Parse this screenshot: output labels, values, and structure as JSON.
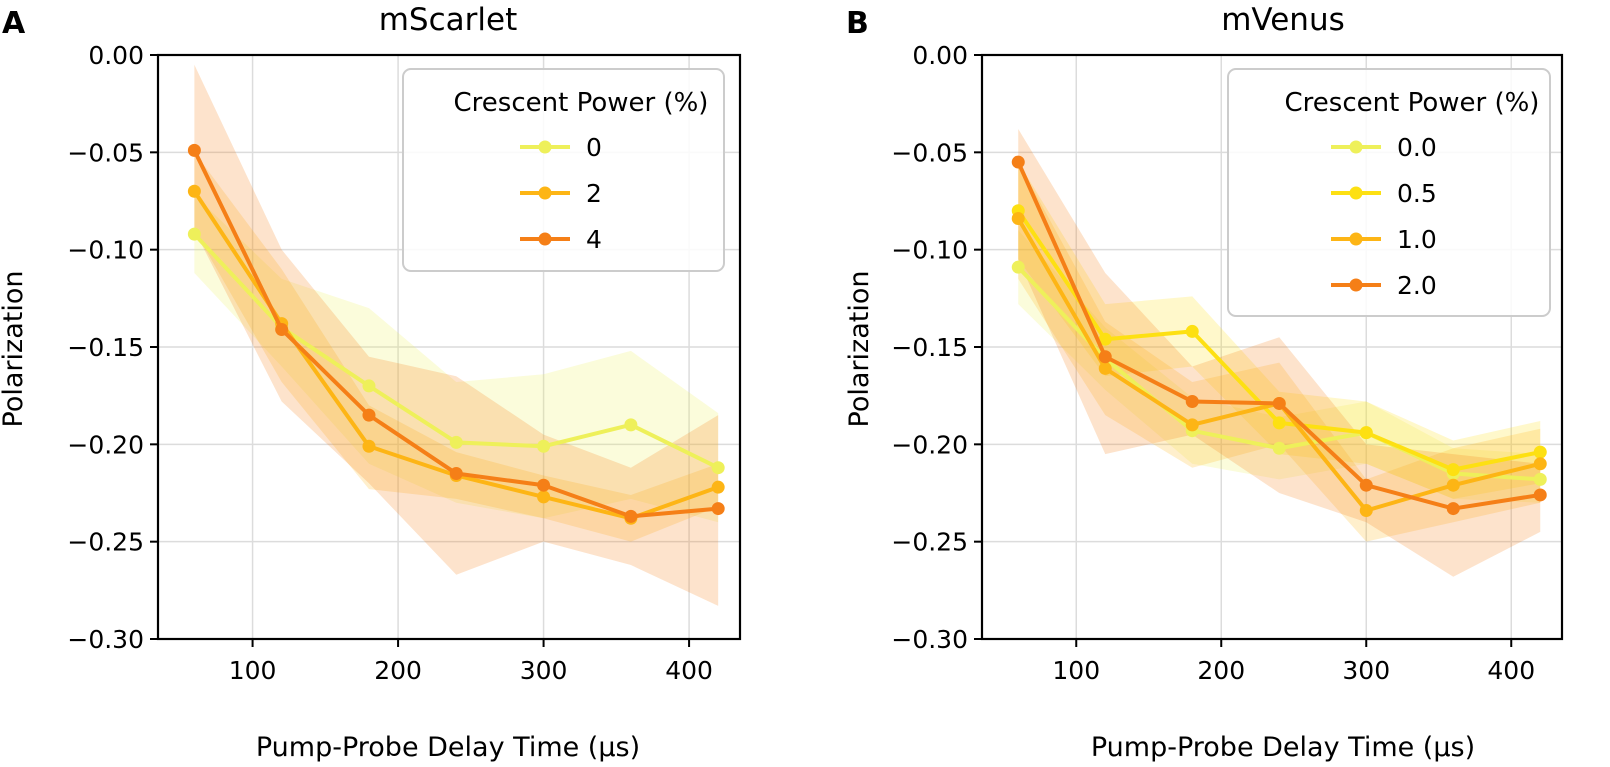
{
  "chart_data": [
    {
      "panel": "A",
      "type": "line",
      "title": "mScarlet",
      "xlabel": "Pump-Probe Delay Time (µs)",
      "ylabel": "Polarization",
      "xlim": [
        35,
        435
      ],
      "ylim": [
        -0.3,
        0.0
      ],
      "xticks": [
        100,
        200,
        300,
        400
      ],
      "xtick_labels": [
        "100",
        "200",
        "300",
        "400"
      ],
      "yticks": [
        0.0,
        -0.05,
        -0.1,
        -0.15,
        -0.2,
        -0.25,
        -0.3
      ],
      "ytick_labels": [
        "0.00",
        "−0.05",
        "−0.10",
        "−0.15",
        "−0.20",
        "−0.25",
        "−0.30"
      ],
      "grid": true,
      "legend": {
        "title": "Crescent Power (%)",
        "position": "top-right"
      },
      "x": [
        60,
        120,
        180,
        240,
        300,
        360,
        420
      ],
      "series": [
        {
          "name": "0",
          "color": "#eef05a",
          "values": [
            -0.092,
            -0.14,
            -0.17,
            -0.199,
            -0.201,
            -0.19,
            -0.212
          ],
          "lower": [
            -0.112,
            -0.16,
            -0.21,
            -0.23,
            -0.238,
            -0.228,
            -0.24
          ],
          "upper": [
            -0.072,
            -0.115,
            -0.13,
            -0.168,
            -0.164,
            -0.152,
            -0.184
          ]
        },
        {
          "name": "2",
          "color": "#fdb515",
          "values": [
            -0.07,
            -0.138,
            -0.201,
            -0.216,
            -0.227,
            -0.238,
            -0.222
          ],
          "lower": [
            -0.09,
            -0.168,
            -0.223,
            -0.228,
            -0.238,
            -0.25,
            -0.232
          ],
          "upper": [
            -0.05,
            -0.11,
            -0.18,
            -0.204,
            -0.216,
            -0.226,
            -0.21
          ]
        },
        {
          "name": "4",
          "color": "#f57f17",
          "values": [
            -0.049,
            -0.141,
            -0.185,
            -0.215,
            -0.221,
            -0.237,
            -0.233
          ],
          "lower": [
            -0.09,
            -0.178,
            -0.22,
            -0.267,
            -0.25,
            -0.262,
            -0.283
          ],
          "upper": [
            -0.005,
            -0.1,
            -0.155,
            -0.165,
            -0.195,
            -0.212,
            -0.185
          ]
        }
      ]
    },
    {
      "panel": "B",
      "type": "line",
      "title": "mVenus",
      "xlabel": "Pump-Probe Delay Time (µs)",
      "ylabel": "Polarization",
      "xlim": [
        35,
        435
      ],
      "ylim": [
        -0.3,
        0.0
      ],
      "xticks": [
        100,
        200,
        300,
        400
      ],
      "xtick_labels": [
        "100",
        "200",
        "300",
        "400"
      ],
      "yticks": [
        0.0,
        -0.05,
        -0.1,
        -0.15,
        -0.2,
        -0.25,
        -0.3
      ],
      "ytick_labels": [
        "0.00",
        "−0.05",
        "−0.10",
        "−0.15",
        "−0.20",
        "−0.25",
        "−0.30"
      ],
      "grid": true,
      "legend": {
        "title": "Crescent Power (%)",
        "position": "top-right"
      },
      "x": [
        60,
        120,
        180,
        240,
        300,
        360,
        420
      ],
      "series": [
        {
          "name": "0.0",
          "color": "#eef05a",
          "values": [
            -0.109,
            -0.156,
            -0.193,
            -0.202,
            -0.194,
            -0.215,
            -0.218
          ],
          "lower": [
            -0.128,
            -0.172,
            -0.21,
            -0.218,
            -0.21,
            -0.228,
            -0.23
          ],
          "upper": [
            -0.09,
            -0.14,
            -0.176,
            -0.186,
            -0.178,
            -0.202,
            -0.205
          ]
        },
        {
          "name": "0.5",
          "color": "#fde012",
          "values": [
            -0.08,
            -0.146,
            -0.142,
            -0.189,
            -0.194,
            -0.213,
            -0.204
          ],
          "lower": [
            -0.105,
            -0.165,
            -0.16,
            -0.205,
            -0.21,
            -0.228,
            -0.22
          ],
          "upper": [
            -0.055,
            -0.128,
            -0.124,
            -0.173,
            -0.178,
            -0.198,
            -0.188
          ]
        },
        {
          "name": "1.0",
          "color": "#fdb515",
          "values": [
            -0.084,
            -0.161,
            -0.19,
            -0.179,
            -0.234,
            -0.221,
            -0.21
          ],
          "lower": [
            -0.115,
            -0.185,
            -0.212,
            -0.2,
            -0.25,
            -0.24,
            -0.23
          ],
          "upper": [
            -0.055,
            -0.137,
            -0.168,
            -0.158,
            -0.218,
            -0.202,
            -0.192
          ]
        },
        {
          "name": "2.0",
          "color": "#f57f17",
          "values": [
            -0.055,
            -0.155,
            -0.178,
            -0.179,
            -0.221,
            -0.233,
            -0.226
          ],
          "lower": [
            -0.105,
            -0.205,
            -0.195,
            -0.225,
            -0.24,
            -0.268,
            -0.245
          ],
          "upper": [
            -0.038,
            -0.112,
            -0.16,
            -0.145,
            -0.2,
            -0.205,
            -0.21
          ]
        }
      ]
    }
  ]
}
